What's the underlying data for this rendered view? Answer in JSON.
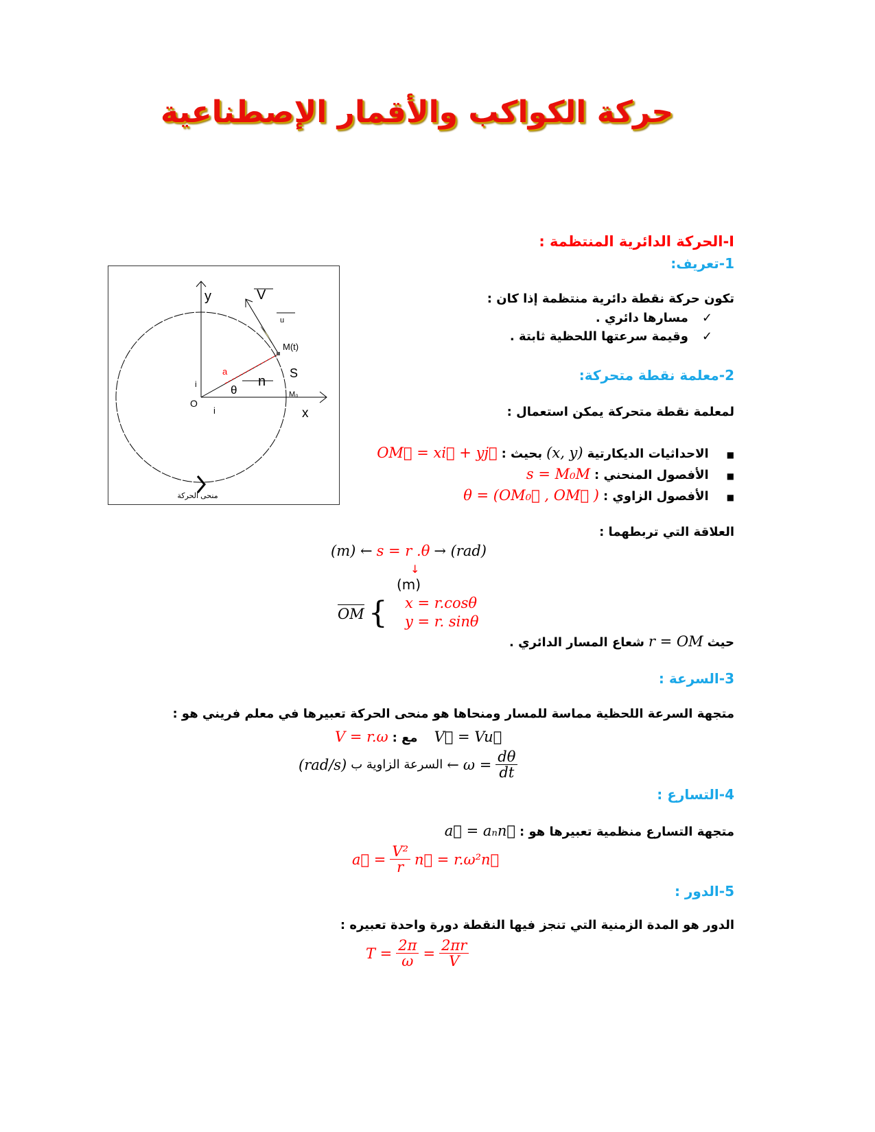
{
  "title": "حركة الكواكب والأقمار الإصطناعية",
  "section_I": "I-الحركة الدائرية المنتظمة :",
  "s1": {
    "heading": "1-تعريف:",
    "intro": "تكون حركة نقطة دائرية منتظمة إذا كان :",
    "checks": [
      "مسارها دائري .",
      "وقيمة سرعتها اللحظية ثابتة ."
    ],
    "check_icon": "✓"
  },
  "s2": {
    "heading": "2-معلمة نقطة متحركة:",
    "intro": "لمعلمة نقطة متحركة يمكن استعمال :",
    "items": [
      {
        "label": "الاحداثيات الديكارتية",
        "mid": "(x, y)",
        "sep": "بحيث :",
        "formula": "OM⃗ = xi⃗ + yj⃗"
      },
      {
        "label": "الأفصول المنحني :",
        "formula": "s = M₀M"
      },
      {
        "label": "الأفصول الزاوي :",
        "formula": "θ = (OM₀⃗ , OM⃗ )"
      }
    ],
    "relation_label": "العلاقة التي تربطهما :",
    "relation": {
      "left": "(m) ←",
      "eq": "s = r .θ",
      "right": "→ (rad)",
      "under_arrow": "↓",
      "under_unit": "(m)"
    },
    "om_label": "OM",
    "om_x": "x = r.cosθ",
    "om_y": "y = r. sinθ",
    "where_prefix": "حيث",
    "where_formula": "r = OM",
    "where_suffix": "شعاع المسار الدائري ."
  },
  "s3": {
    "heading": "3-السرعة :",
    "text": "متجهة السرعة اللحظية مماسة للمسار  ومنحاها هو منحى الحركة تعبيرها في معلم فريني هو :",
    "v_formula": "V⃗ = Vu⃗",
    "with": "مع :",
    "v_red": "V = r.ω",
    "omega_lhs": "ω =",
    "omega_num": "dθ",
    "omega_den": "dt",
    "omega_arrow": "←",
    "omega_text": "السرعة الزاوية ب",
    "omega_unit": "(rad/s)"
  },
  "s4": {
    "heading": "4-التسارع :",
    "text": "متجهة التسارع منظمية تعبيرها هو :",
    "a_formula": "a⃗ = aₙn⃗",
    "a_lhs": "a⃗ =",
    "a_num": "V²",
    "a_den": "r",
    "a_rhs": "n⃗ = r.ω²n⃗"
  },
  "s5": {
    "heading": "5-الدور :",
    "text": "الدور هو المدة الزمنية التي تنجز فيها النقطة دورة واحدة تعبيره :",
    "t_lhs": "T =",
    "f1_num": "2π",
    "f1_den": "ω",
    "eq": "=",
    "f2_num": "2πr",
    "f2_den": "V"
  },
  "figure": {
    "y": "y",
    "x": "x",
    "v": "V",
    "u": "u",
    "m": "M(t)",
    "s": "S",
    "a": "a",
    "n": "n",
    "theta": "θ",
    "o": "O",
    "i": "i",
    "j": "i",
    "m0": "M₀",
    "caption": "منحى الحركة"
  },
  "colors": {
    "red": "#ff0000",
    "blue": "#1aa7e8",
    "title": "#e8100a"
  }
}
